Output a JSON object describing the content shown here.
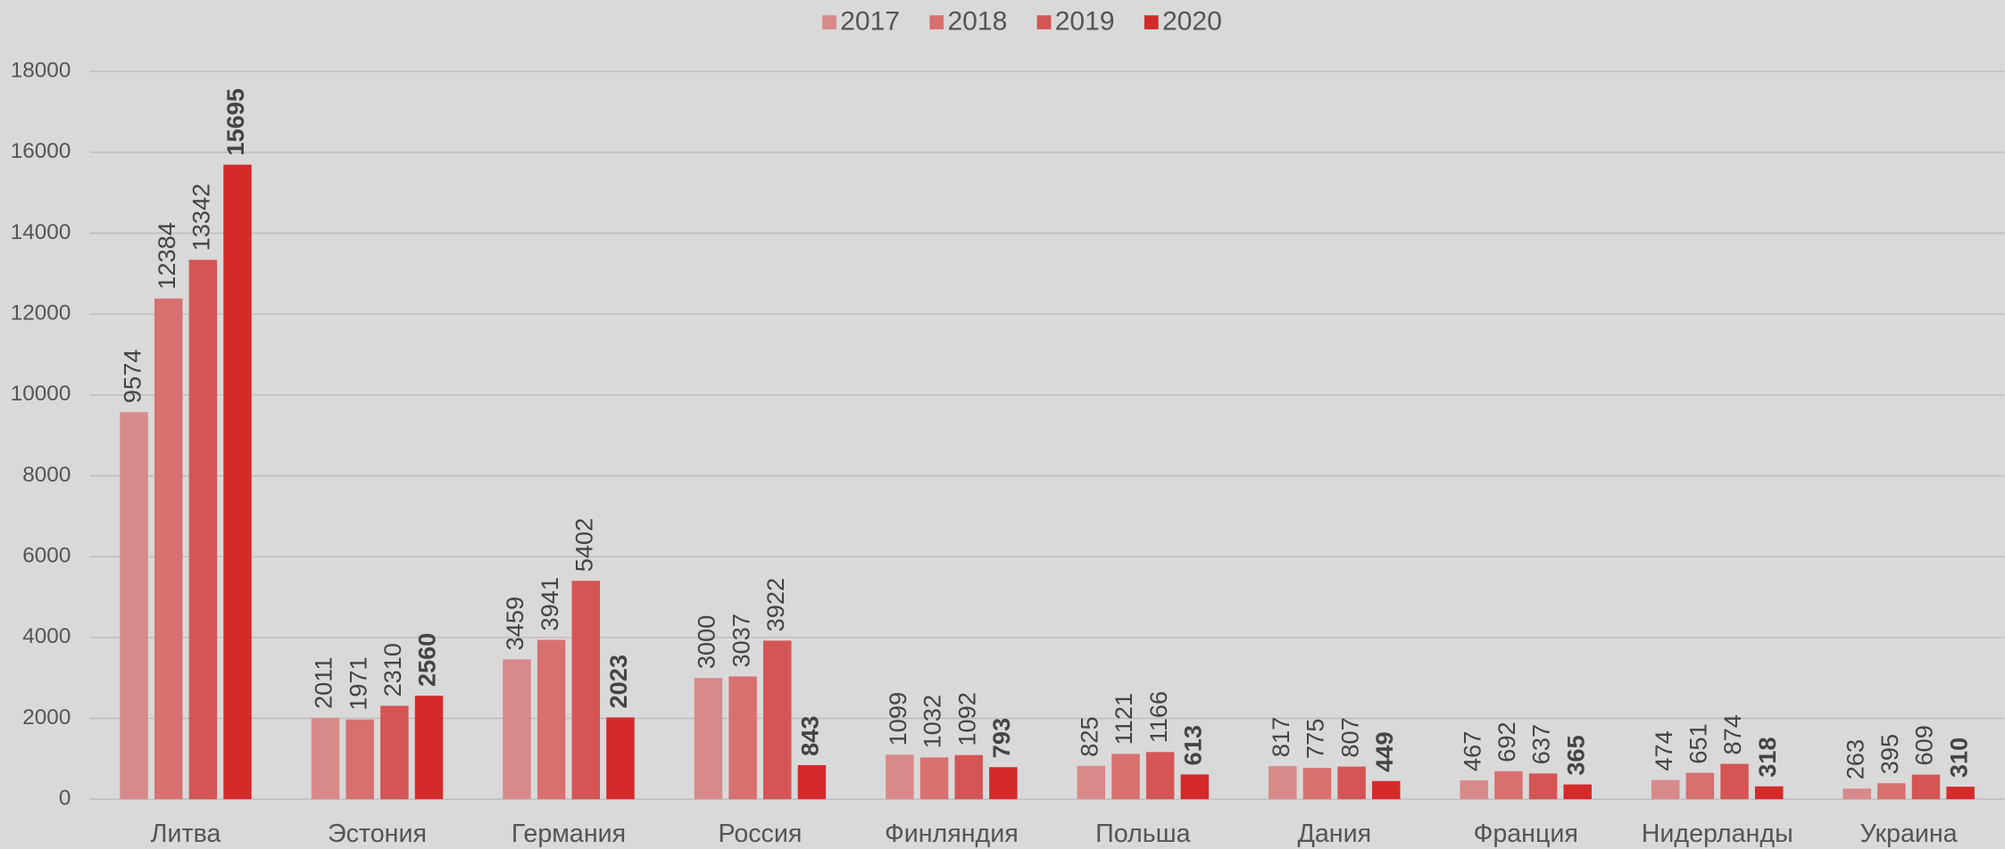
{
  "chart_data": {
    "type": "bar",
    "categories": [
      "Литва",
      "Эстония",
      "Германия",
      "Россия",
      "Финляндия",
      "Польша",
      "Дания",
      "Франция",
      "Нидерланды",
      "Украина"
    ],
    "series": [
      {
        "name": "2017",
        "color": "#d88a8a",
        "values": [
          9574,
          2011,
          3459,
          3000,
          1099,
          825,
          817,
          467,
          474,
          263
        ]
      },
      {
        "name": "2018",
        "color": "#d87070",
        "values": [
          12384,
          1971,
          3941,
          3037,
          1032,
          1121,
          775,
          692,
          651,
          395
        ]
      },
      {
        "name": "2019",
        "color": "#d55555",
        "values": [
          13342,
          2310,
          5402,
          3922,
          1092,
          1166,
          807,
          637,
          874,
          609
        ]
      },
      {
        "name": "2020",
        "color": "#d42a2a",
        "values": [
          15695,
          2560,
          2023,
          843,
          793,
          613,
          449,
          365,
          318,
          310
        ]
      }
    ],
    "ylim": [
      0,
      18000
    ],
    "yticks": [
      0,
      2000,
      4000,
      6000,
      8000,
      10000,
      12000,
      14000,
      16000,
      18000
    ],
    "grid": true,
    "legend": "top"
  }
}
